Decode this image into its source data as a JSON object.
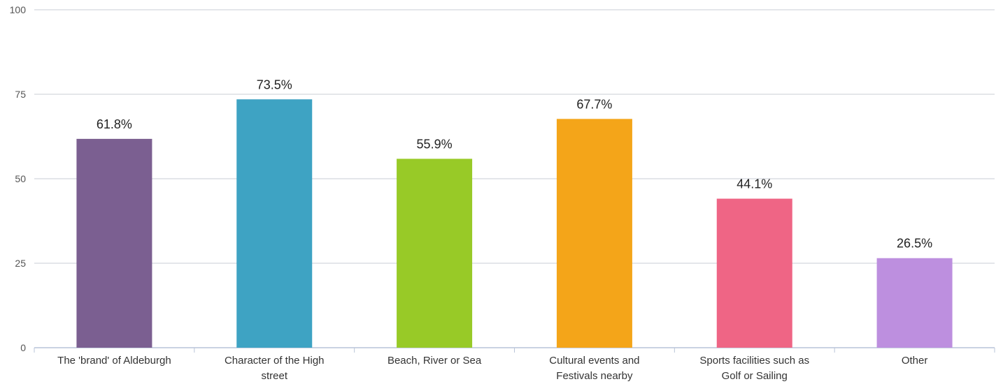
{
  "chart_data": {
    "type": "bar",
    "categories": [
      [
        "The 'brand' of Aldeburgh"
      ],
      [
        "Character of the High",
        "street"
      ],
      [
        "Beach, River or Sea"
      ],
      [
        "Cultural events and",
        "Festivals nearby"
      ],
      [
        "Sports facilities such as",
        "Golf or Sailing"
      ],
      [
        "Other"
      ]
    ],
    "values": [
      61.8,
      73.5,
      55.9,
      67.7,
      44.1,
      26.5
    ],
    "data_labels": [
      "61.8%",
      "73.5%",
      "55.9%",
      "67.7%",
      "44.1%",
      "26.5%"
    ],
    "colors": [
      "#7b5f91",
      "#3ea3c3",
      "#98ca27",
      "#f4a519",
      "#ef6585",
      "#bd8fdf"
    ],
    "ylim": [
      0,
      100
    ],
    "yticks": [
      "0",
      "25",
      "50",
      "75",
      "100"
    ],
    "grid": true,
    "legend": "none",
    "title": "",
    "xlabel": "",
    "ylabel": ""
  }
}
